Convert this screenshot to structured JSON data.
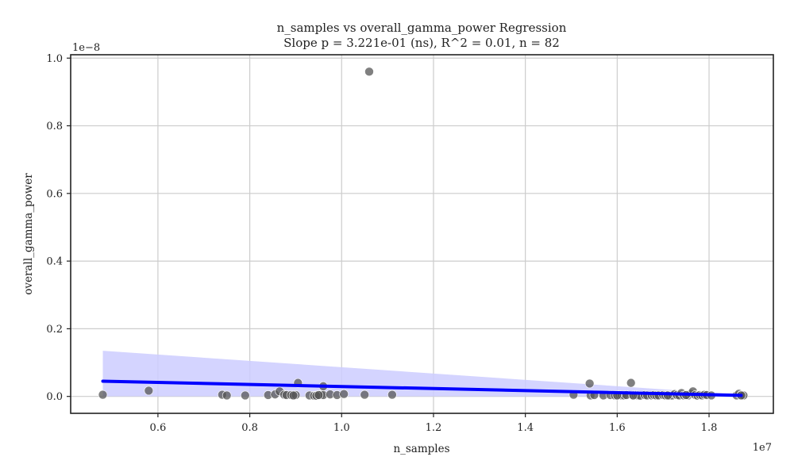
{
  "chart_data": {
    "type": "scatter",
    "title_line1": "n_samples vs overall_gamma_power Regression",
    "title_line2": "Slope p = 3.221e-01 (ns), R^2 = 0.01, n = 82",
    "xlabel": "n_samples",
    "ylabel": "overall_gamma_power",
    "x_offset_label": "1e7",
    "y_offset_label": "1e−8",
    "xlim": [
      4.1,
      19.4
    ],
    "ylim": [
      -0.05,
      1.01
    ],
    "x_ticks": [
      0.6,
      0.8,
      1.0,
      1.2,
      1.4,
      1.6,
      1.8
    ],
    "x_tick_labels": [
      "0.6",
      "0.8",
      "1.0",
      "1.2",
      "1.4",
      "1.6",
      "1.8"
    ],
    "y_ticks": [
      0.0,
      0.2,
      0.4,
      0.6,
      0.8,
      1.0
    ],
    "y_tick_labels": [
      "0.0",
      "0.2",
      "0.4",
      "0.6",
      "0.8",
      "1.0"
    ],
    "grid": true,
    "units_note": "x values in units of 1e6 (axis shows 1e7 multiplier); y values in units of 1e-8",
    "points_color": "#555555",
    "line_color": "#0000ff",
    "band_color": "#ccccff",
    "regression": {
      "x": [
        4.8,
        18.7
      ],
      "y": [
        0.045,
        0.003
      ]
    },
    "ci_band": {
      "x": [
        4.8,
        18.7
      ],
      "upper": [
        0.135,
        0.005
      ],
      "lower": [
        0.0,
        0.0
      ]
    },
    "series": [
      {
        "x": [
          4.8,
          5.8,
          7.4,
          7.5,
          7.9,
          8.4,
          8.55,
          8.65,
          8.75,
          8.8,
          8.9,
          9.0,
          9.05,
          9.3,
          9.4,
          9.45,
          9.5,
          9.55,
          9.6,
          9.6,
          9.75,
          9.9,
          10.05,
          10.5,
          10.6,
          11.1,
          15.05,
          15.4,
          15.42,
          15.5,
          15.7,
          15.85,
          15.95,
          16.0,
          16.05,
          16.1,
          16.15,
          16.2,
          16.3,
          16.35,
          16.4,
          16.45,
          16.5,
          16.6,
          16.65,
          16.75,
          16.8,
          16.85,
          16.9,
          17.0,
          17.05,
          17.1,
          17.15,
          17.2,
          17.25,
          17.3,
          17.35,
          17.4,
          17.45,
          17.5,
          17.55,
          17.6,
          17.65,
          17.7,
          17.75,
          17.8,
          17.85,
          17.9,
          17.95,
          18.05,
          18.6,
          18.65,
          18.7,
          18.75,
          8.95,
          9.45,
          9.5,
          16.0,
          16.35,
          17.1,
          17.5,
          18.7
        ],
        "y": [
          0.005,
          0.017,
          0.005,
          0.003,
          0.003,
          0.004,
          0.006,
          0.015,
          0.005,
          0.004,
          0.004,
          0.004,
          0.04,
          0.003,
          0.002,
          0.003,
          0.004,
          0.005,
          0.03,
          0.004,
          0.006,
          0.004,
          0.007,
          0.005,
          0.96,
          0.005,
          0.005,
          0.038,
          0.003,
          0.004,
          0.003,
          0.004,
          0.003,
          0.003,
          0.004,
          0.003,
          0.003,
          0.004,
          0.04,
          0.003,
          0.004,
          0.003,
          0.002,
          0.004,
          0.003,
          0.003,
          0.004,
          0.003,
          0.003,
          0.004,
          0.003,
          0.004,
          0.002,
          0.003,
          0.007,
          0.004,
          0.003,
          0.01,
          0.003,
          0.004,
          0.003,
          0.008,
          0.015,
          0.004,
          0.002,
          0.004,
          0.003,
          0.005,
          0.004,
          0.003,
          0.003,
          0.008,
          0.004,
          0.003,
          0.003,
          0.002,
          0.004,
          0.003,
          0.003,
          0.003,
          0.004,
          0.003
        ]
      }
    ]
  }
}
